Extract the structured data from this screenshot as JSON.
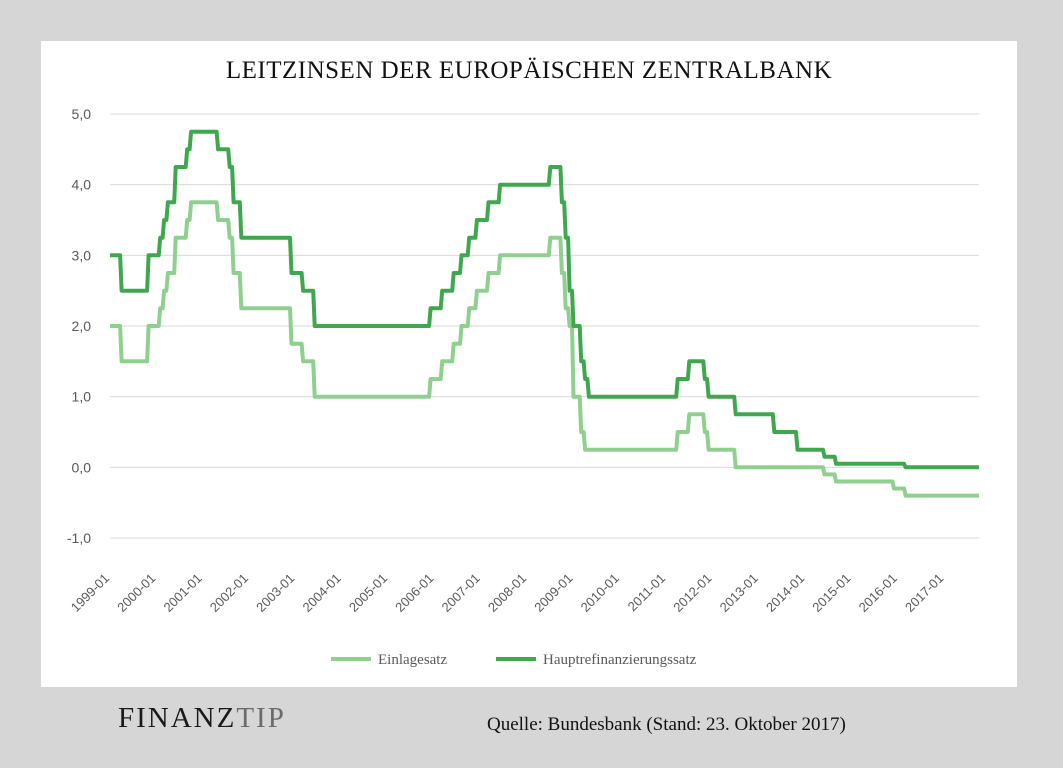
{
  "chart_data": {
    "type": "line",
    "title": "LEITZINSEN DER EUROPÄISCHEN ZENTRALBANK",
    "xlabel": "",
    "ylabel": "",
    "ylim": [
      -1.0,
      5.0
    ],
    "xlim": [
      "1999-01",
      "2017-10"
    ],
    "y_ticks": [
      "5,0",
      "4,0",
      "3,0",
      "2,0",
      "1,0",
      "0,0",
      "-1,0"
    ],
    "y_tick_values": [
      5,
      4,
      3,
      2,
      1,
      0,
      -1
    ],
    "x_ticks": [
      "1999-01",
      "2000-01",
      "2001-01",
      "2002-01",
      "2003-01",
      "2004-01",
      "2005-01",
      "2006-01",
      "2007-01",
      "2008-01",
      "2009-01",
      "2010-01",
      "2011-01",
      "2012-01",
      "2013-01",
      "2014-01",
      "2015-01",
      "2016-01",
      "2017-01"
    ],
    "grid": "horizontal",
    "legend_position": "bottom",
    "series": [
      {
        "name": "Einlagesatz",
        "color": "#8fd08f",
        "points": [
          [
            "1999-01",
            2.0
          ],
          [
            "1999-04",
            1.5
          ],
          [
            "1999-11",
            2.0
          ],
          [
            "2000-02",
            2.25
          ],
          [
            "2000-03",
            2.5
          ],
          [
            "2000-04",
            2.75
          ],
          [
            "2000-06",
            3.25
          ],
          [
            "2000-09",
            3.5
          ],
          [
            "2000-10",
            3.75
          ],
          [
            "2001-05",
            3.5
          ],
          [
            "2001-08",
            3.25
          ],
          [
            "2001-09",
            2.75
          ],
          [
            "2001-11",
            2.25
          ],
          [
            "2002-12",
            1.75
          ],
          [
            "2003-03",
            1.5
          ],
          [
            "2003-06",
            1.0
          ],
          [
            "2005-12",
            1.25
          ],
          [
            "2006-03",
            1.5
          ],
          [
            "2006-06",
            1.75
          ],
          [
            "2006-08",
            2.0
          ],
          [
            "2006-10",
            2.25
          ],
          [
            "2006-12",
            2.5
          ],
          [
            "2007-03",
            2.75
          ],
          [
            "2007-06",
            3.0
          ],
          [
            "2008-07",
            3.25
          ],
          [
            "2008-10",
            2.75
          ],
          [
            "2008-11",
            2.25
          ],
          [
            "2008-12",
            2.0
          ],
          [
            "2009-01",
            1.0
          ],
          [
            "2009-03",
            0.5
          ],
          [
            "2009-04",
            0.25
          ],
          [
            "2011-04",
            0.5
          ],
          [
            "2011-07",
            0.75
          ],
          [
            "2011-11",
            0.5
          ],
          [
            "2011-12",
            0.25
          ],
          [
            "2012-07",
            0.0
          ],
          [
            "2014-06",
            -0.1
          ],
          [
            "2014-09",
            -0.2
          ],
          [
            "2015-12",
            -0.3
          ],
          [
            "2016-03",
            -0.4
          ],
          [
            "2017-10",
            -0.4
          ]
        ]
      },
      {
        "name": "Hauptrefinanzierungssatz",
        "color": "#3fa84f",
        "points": [
          [
            "1999-01",
            3.0
          ],
          [
            "1999-04",
            2.5
          ],
          [
            "1999-11",
            3.0
          ],
          [
            "2000-02",
            3.25
          ],
          [
            "2000-03",
            3.5
          ],
          [
            "2000-04",
            3.75
          ],
          [
            "2000-06",
            4.25
          ],
          [
            "2000-09",
            4.5
          ],
          [
            "2000-10",
            4.75
          ],
          [
            "2001-05",
            4.5
          ],
          [
            "2001-08",
            4.25
          ],
          [
            "2001-09",
            3.75
          ],
          [
            "2001-11",
            3.25
          ],
          [
            "2002-12",
            2.75
          ],
          [
            "2003-03",
            2.5
          ],
          [
            "2003-06",
            2.0
          ],
          [
            "2005-12",
            2.25
          ],
          [
            "2006-03",
            2.5
          ],
          [
            "2006-06",
            2.75
          ],
          [
            "2006-08",
            3.0
          ],
          [
            "2006-10",
            3.25
          ],
          [
            "2006-12",
            3.5
          ],
          [
            "2007-03",
            3.75
          ],
          [
            "2007-06",
            4.0
          ],
          [
            "2008-07",
            4.25
          ],
          [
            "2008-10",
            3.75
          ],
          [
            "2008-11",
            3.25
          ],
          [
            "2008-12",
            2.5
          ],
          [
            "2009-01",
            2.0
          ],
          [
            "2009-03",
            1.5
          ],
          [
            "2009-04",
            1.25
          ],
          [
            "2009-05",
            1.0
          ],
          [
            "2011-04",
            1.25
          ],
          [
            "2011-07",
            1.5
          ],
          [
            "2011-11",
            1.25
          ],
          [
            "2011-12",
            1.0
          ],
          [
            "2012-07",
            0.75
          ],
          [
            "2013-05",
            0.5
          ],
          [
            "2013-11",
            0.25
          ],
          [
            "2014-06",
            0.15
          ],
          [
            "2014-09",
            0.05
          ],
          [
            "2016-03",
            0.0
          ],
          [
            "2017-10",
            0.0
          ]
        ]
      }
    ]
  },
  "footer": {
    "brand_part1": "FINANZ",
    "brand_part2": "TIP",
    "source": "Quelle: Bundesbank (Stand: 23. Oktober 2017)"
  }
}
